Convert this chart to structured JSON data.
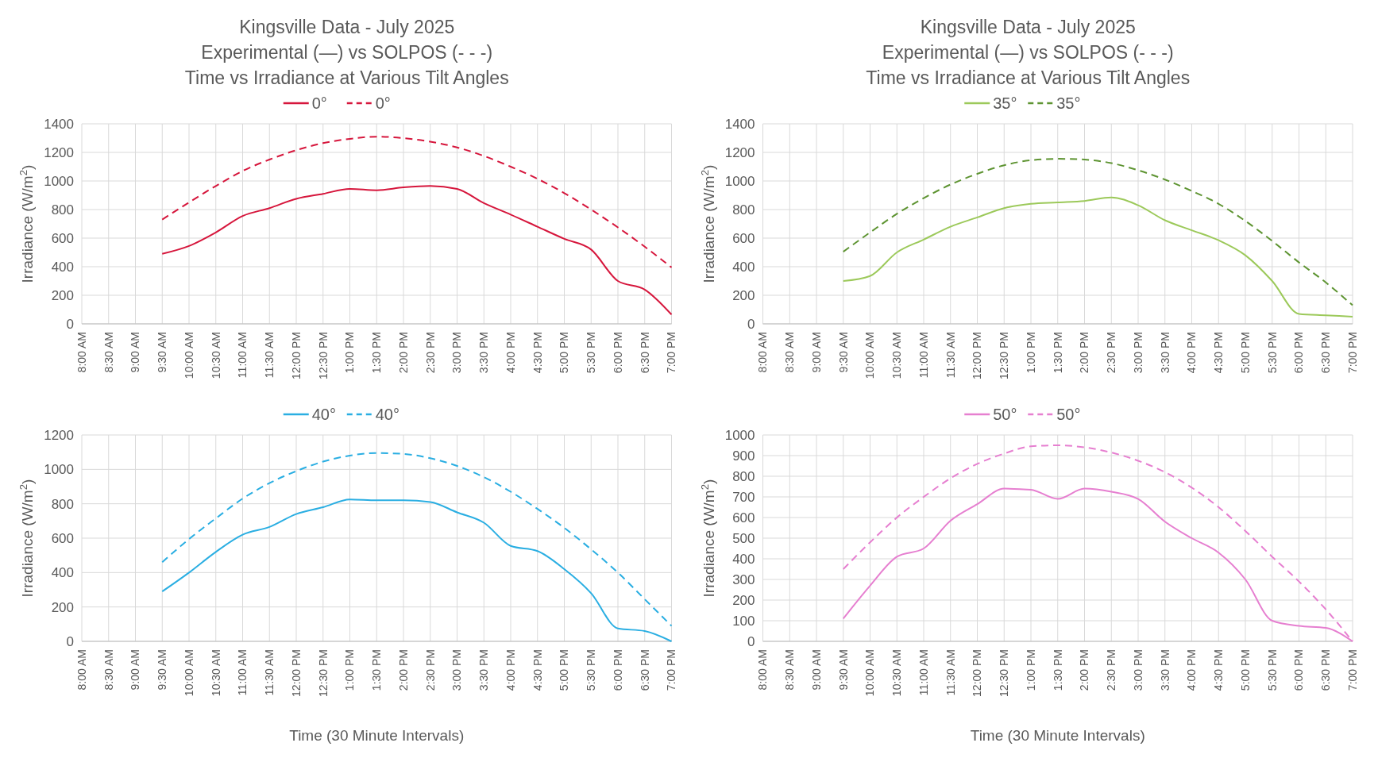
{
  "chart_data": [
    {
      "type": "line",
      "title": "Kingsville Data - July 2025",
      "subtitle": "Experimental (—) vs SOLPOS (- - -)\nTime vs Irradiance at Various Tilt Angles",
      "ylabel": "Irradiance (W/m$^{2}$)",
      "categories": [
        "8:00 AM",
        "8:30 AM",
        "9:00 AM",
        "9:30 AM",
        "10:00 AM",
        "10:30 AM",
        "11:00 AM",
        "11:30 AM",
        "12:00 PM",
        "12:30 PM",
        "1:00 PM",
        "1:30 PM",
        "2:00 PM",
        "2:30 PM",
        "3:00 PM",
        "3:30 PM",
        "4:00 PM",
        "4:30 PM",
        "5:00 PM",
        "5:30 PM",
        "6:00 PM",
        "6:30 PM",
        "7:00 PM"
      ],
      "ylim": [
        0,
        1400
      ],
      "yticks": [
        0,
        200,
        400,
        600,
        800,
        1000,
        1200,
        1400
      ],
      "grid": true,
      "legend": "top",
      "series": [
        {
          "name": "0°",
          "color": "#d6163c",
          "line_style": "solid",
          "values": [
            null,
            null,
            null,
            490,
            545,
            640,
            755,
            810,
            875,
            910,
            945,
            935,
            955,
            965,
            945,
            845,
            765,
            680,
            595,
            520,
            300,
            240,
            65
          ]
        },
        {
          "name": "0°",
          "color": "#d6163c",
          "line_style": "dashed",
          "values": [
            null,
            null,
            null,
            730,
            850,
            965,
            1070,
            1150,
            1215,
            1265,
            1295,
            1310,
            1300,
            1275,
            1235,
            1175,
            1100,
            1015,
            915,
            800,
            675,
            540,
            395
          ]
        }
      ]
    },
    {
      "type": "line",
      "title": "Kingsville Data - July 2025",
      "subtitle": "Experimental (—) vs SOLPOS (- - -)\nTime vs Irradiance at Various Tilt Angles",
      "ylabel": "Irradiance (W/m$^{2}$)",
      "categories": [
        "8:00 AM",
        "8:30 AM",
        "9:00 AM",
        "9:30 AM",
        "10:00 AM",
        "10:30 AM",
        "11:00 AM",
        "11:30 AM",
        "12:00 PM",
        "12:30 PM",
        "1:00 PM",
        "1:30 PM",
        "2:00 PM",
        "2:30 PM",
        "3:00 PM",
        "3:30 PM",
        "4:00 PM",
        "4:30 PM",
        "5:00 PM",
        "5:30 PM",
        "6:00 PM",
        "6:30 PM",
        "7:00 PM"
      ],
      "ylim": [
        0,
        1400
      ],
      "yticks": [
        0,
        200,
        400,
        600,
        800,
        1000,
        1200,
        1400
      ],
      "grid": true,
      "legend": "top",
      "series": [
        {
          "name": "35°",
          "color": "#9cc95a",
          "line_style": "solid",
          "values": [
            null,
            null,
            null,
            300,
            335,
            500,
            590,
            680,
            745,
            810,
            840,
            850,
            860,
            885,
            830,
            725,
            655,
            585,
            480,
            300,
            70,
            60,
            50
          ]
        },
        {
          "name": "35°",
          "color": "#5e9432",
          "line_style": "dashed",
          "values": [
            null,
            null,
            null,
            505,
            640,
            770,
            880,
            975,
            1050,
            1110,
            1145,
            1155,
            1150,
            1125,
            1075,
            1010,
            930,
            840,
            720,
            580,
            430,
            290,
            130
          ]
        }
      ]
    },
    {
      "type": "line",
      "xlabel": "Time (30 Minute Intervals)",
      "ylabel": "Irradiance (W/m$^{2}$)",
      "categories": [
        "8:00 AM",
        "8:30 AM",
        "9:00 AM",
        "9:30 AM",
        "10:00 AM",
        "10:30 AM",
        "11:00 AM",
        "11:30 AM",
        "12:00 PM",
        "12:30 PM",
        "1:00 PM",
        "1:30 PM",
        "2:00 PM",
        "2:30 PM",
        "3:00 PM",
        "3:30 PM",
        "4:00 PM",
        "4:30 PM",
        "5:00 PM",
        "5:30 PM",
        "6:00 PM",
        "6:30 PM",
        "7:00 PM"
      ],
      "ylim": [
        0,
        1200
      ],
      "yticks": [
        0,
        200,
        400,
        600,
        800,
        1000,
        1200
      ],
      "grid": true,
      "legend": "top",
      "series": [
        {
          "name": "40°",
          "color": "#2aaee2",
          "line_style": "solid",
          "values": [
            null,
            null,
            null,
            290,
            400,
            520,
            620,
            665,
            740,
            780,
            825,
            820,
            820,
            810,
            750,
            690,
            555,
            525,
            420,
            280,
            75,
            60,
            0
          ]
        },
        {
          "name": "40°",
          "color": "#2aaee2",
          "line_style": "dashed",
          "values": [
            null,
            null,
            null,
            460,
            595,
            715,
            830,
            920,
            990,
            1045,
            1080,
            1095,
            1090,
            1065,
            1020,
            955,
            870,
            770,
            660,
            535,
            400,
            245,
            90
          ]
        }
      ]
    },
    {
      "type": "line",
      "xlabel": "Time (30 Minute Intervals)",
      "ylabel": "Irradiance (W/m$^{2}$)",
      "categories": [
        "8:00 AM",
        "8:30 AM",
        "9:00 AM",
        "9:30 AM",
        "10:00 AM",
        "10:30 AM",
        "11:00 AM",
        "11:30 AM",
        "12:00 PM",
        "12:30 PM",
        "1:00 PM",
        "1:30 PM",
        "2:00 PM",
        "2:30 PM",
        "3:00 PM",
        "3:30 PM",
        "4:00 PM",
        "4:30 PM",
        "5:00 PM",
        "5:30 PM",
        "6:00 PM",
        "6:30 PM",
        "7:00 PM"
      ],
      "ylim": [
        0,
        1000
      ],
      "yticks": [
        0,
        100,
        200,
        300,
        400,
        500,
        600,
        700,
        800,
        900,
        1000
      ],
      "grid": true,
      "legend": "top",
      "series": [
        {
          "name": "50°",
          "color": "#e67fd0",
          "line_style": "solid",
          "values": [
            null,
            null,
            null,
            110,
            270,
            410,
            450,
            585,
            665,
            740,
            735,
            690,
            740,
            725,
            690,
            580,
            500,
            430,
            300,
            100,
            75,
            65,
            0
          ]
        },
        {
          "name": "50°",
          "color": "#e67fd0",
          "line_style": "dashed",
          "values": [
            null,
            null,
            null,
            350,
            480,
            600,
            700,
            790,
            860,
            910,
            945,
            950,
            940,
            915,
            875,
            820,
            745,
            650,
            535,
            410,
            290,
            155,
            0
          ]
        }
      ]
    }
  ]
}
